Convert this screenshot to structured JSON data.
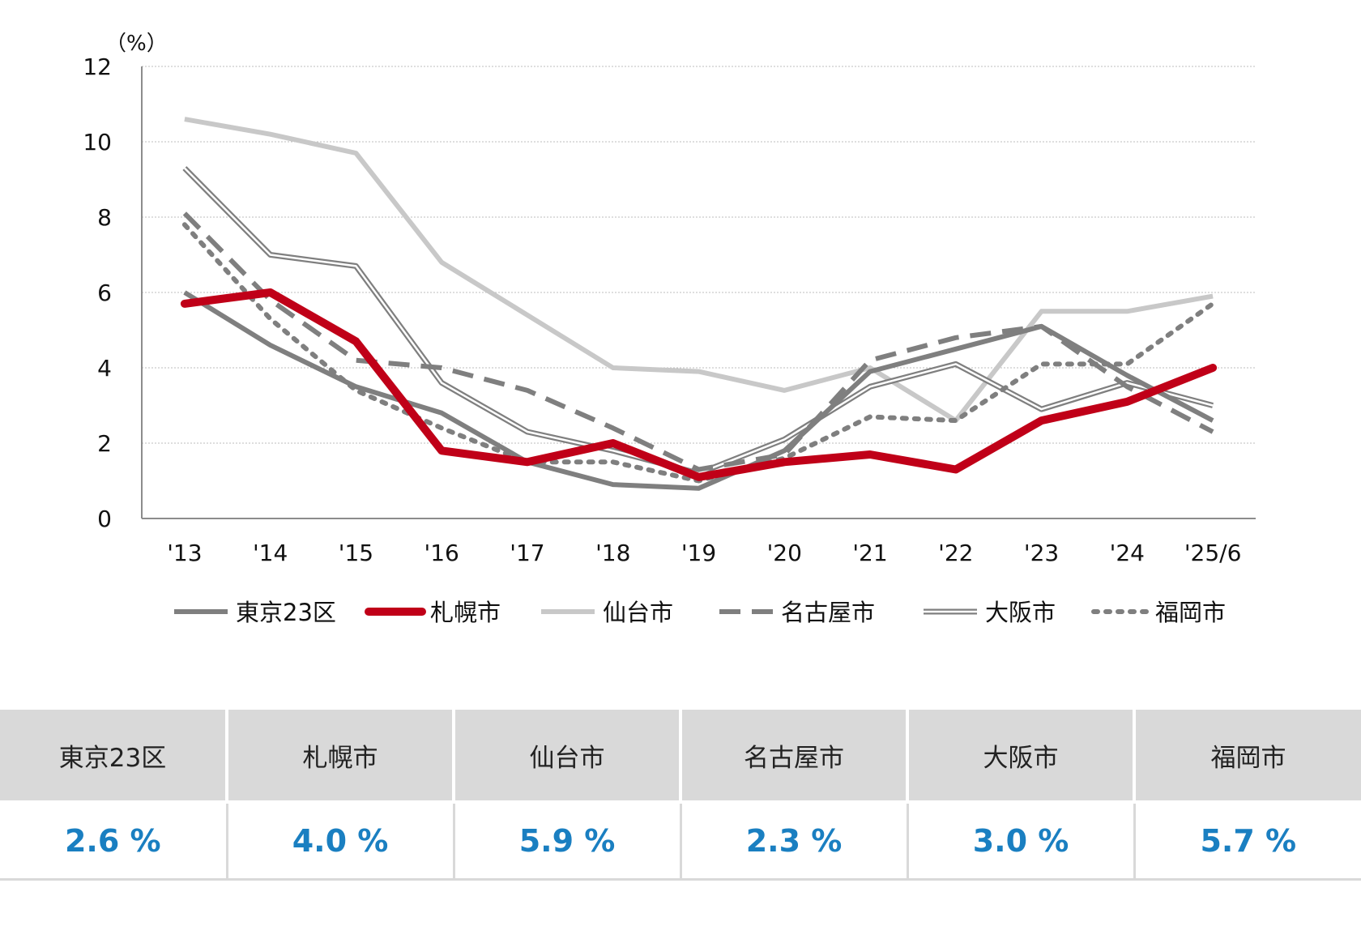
{
  "chart_data": {
    "type": "line",
    "unit_label": "（%）",
    "x": [
      "'13",
      "'14",
      "'15",
      "'16",
      "'17",
      "'18",
      "'19",
      "'20",
      "'21",
      "'22",
      "'23",
      "'24",
      "'25/6"
    ],
    "ylim": [
      0,
      12
    ],
    "yticks": [
      0,
      2,
      4,
      6,
      8,
      10,
      12
    ],
    "grid": true,
    "legend_position": "bottom",
    "series": [
      {
        "name": "東京23区",
        "color": "#7f7f7f",
        "style": "solid-thick",
        "values": [
          6.0,
          4.6,
          3.5,
          2.8,
          1.5,
          0.9,
          0.8,
          1.8,
          3.9,
          4.5,
          5.1,
          3.8,
          2.6
        ]
      },
      {
        "name": "札幌市",
        "color": "#c00018",
        "style": "solid-bold",
        "values": [
          5.7,
          6.0,
          4.7,
          1.8,
          1.5,
          2.0,
          1.1,
          1.5,
          1.7,
          1.3,
          2.6,
          3.1,
          4.0
        ]
      },
      {
        "name": "仙台市",
        "color": "#c8c8c8",
        "style": "solid-thick",
        "values": [
          10.6,
          10.2,
          9.7,
          6.8,
          5.4,
          4.0,
          3.9,
          3.4,
          4.0,
          2.6,
          5.5,
          5.5,
          5.9
        ]
      },
      {
        "name": "名古屋市",
        "color": "#7f7f7f",
        "style": "dashed",
        "values": [
          8.1,
          5.8,
          4.2,
          4.0,
          3.4,
          2.4,
          1.3,
          1.7,
          4.2,
          4.8,
          5.1,
          3.5,
          2.3
        ]
      },
      {
        "name": "大阪市",
        "color": "#7f7f7f",
        "style": "double",
        "values": [
          9.3,
          7.0,
          6.7,
          3.6,
          2.3,
          1.8,
          1.2,
          2.1,
          3.5,
          4.1,
          2.9,
          3.6,
          3.0
        ]
      },
      {
        "name": "福岡市",
        "color": "#7f7f7f",
        "style": "dotted",
        "values": [
          7.8,
          5.3,
          3.4,
          2.4,
          1.5,
          1.5,
          1.0,
          1.6,
          2.7,
          2.6,
          4.1,
          4.1,
          5.7
        ]
      }
    ]
  },
  "summary_table": {
    "headers": [
      "東京23区",
      "札幌市",
      "仙台市",
      "名古屋市",
      "大阪市",
      "福岡市"
    ],
    "values": [
      "2.6 %",
      "4.0 %",
      "5.9 %",
      "2.3 %",
      "3.0 %",
      "5.7 %"
    ],
    "value_color": "#1a7fc1"
  }
}
